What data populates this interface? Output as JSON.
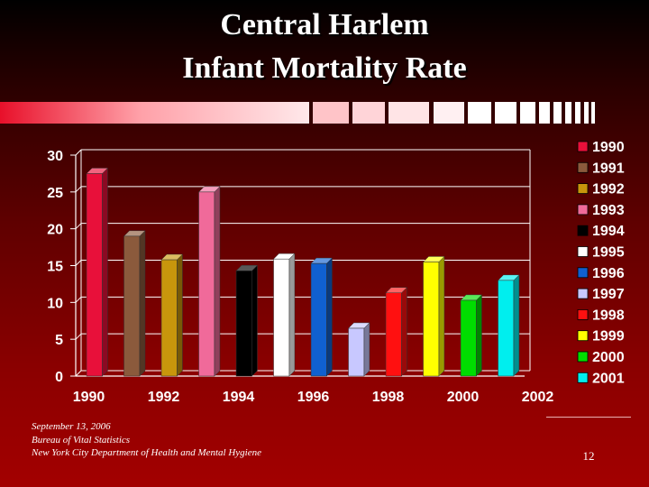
{
  "slide": {
    "title_line1": "Central Harlem",
    "title_line2": "Infant Mortality Rate",
    "footer": [
      "September 13, 2006",
      "Bureau of Vital Statistics",
      "New York City Department of Health and Mental Hygiene"
    ],
    "page_number": "12"
  },
  "chart_data": {
    "type": "bar",
    "title": "",
    "xlabel": "",
    "ylabel": "",
    "categories": [
      "1990",
      "1991",
      "1992",
      "1993",
      "1994",
      "1995",
      "1996",
      "1997",
      "1998",
      "1999",
      "2000",
      "2001"
    ],
    "values": [
      27.5,
      19.0,
      15.8,
      25.0,
      14.3,
      15.9,
      15.3,
      6.5,
      11.3,
      15.5,
      10.3,
      13.0
    ],
    "colors": [
      "#e8103a",
      "#8b5a3c",
      "#c8960c",
      "#f06a9a",
      "#000000",
      "#ffffff",
      "#1060d0",
      "#c8c8ff",
      "#ff1010",
      "#ffff00",
      "#00dd00",
      "#00eeee"
    ],
    "x_tick_labels": [
      "1990",
      "1992",
      "1994",
      "1996",
      "1998",
      "2000",
      "2002"
    ],
    "y_tick_labels": [
      "0",
      "5",
      "10",
      "15",
      "20",
      "25",
      "30"
    ],
    "ylim": [
      0,
      30
    ],
    "grid": true,
    "legend_position": "right"
  }
}
